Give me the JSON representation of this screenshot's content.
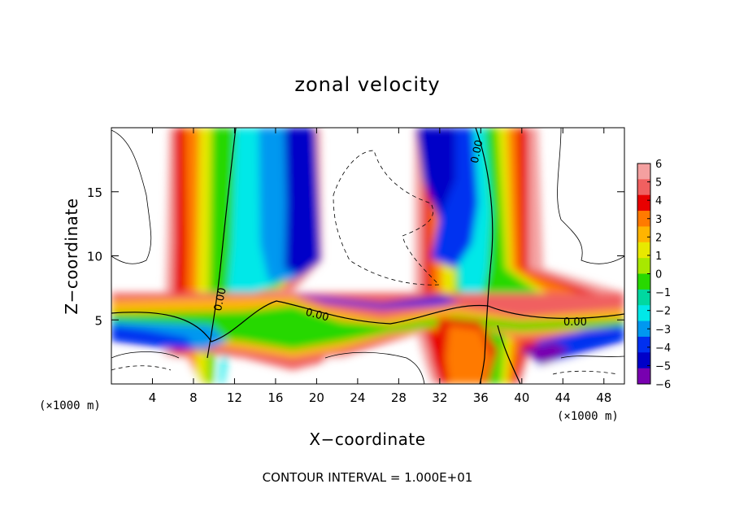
{
  "chart_data": {
    "type": "heatmap",
    "title": "zonal velocity",
    "xlabel": "X−coordinate",
    "ylabel": "Z−coordinate",
    "x_scale_note": "(×1000 m)",
    "y_scale_note": "(×1000 m)",
    "xlim": [
      0,
      50
    ],
    "ylim": [
      0,
      20
    ],
    "x_ticks": [
      4,
      8,
      12,
      16,
      20,
      24,
      28,
      32,
      36,
      40,
      44,
      48
    ],
    "y_ticks": [
      5,
      10,
      15
    ],
    "colorbar": {
      "min": -6,
      "max": 6,
      "ticks": [
        6,
        5,
        4,
        3,
        2,
        1,
        0,
        -1,
        -2,
        -3,
        -4,
        -5,
        -6
      ],
      "tick_labels": [
        "6",
        "5",
        "4",
        "3",
        "2",
        "1",
        "0",
        "−1",
        "−2",
        "−3",
        "−4",
        "−5",
        "−6"
      ],
      "colors": [
        "#f4a0a0",
        "#f06060",
        "#e80000",
        "#ff7a00",
        "#ffb400",
        "#e8e800",
        "#a8e800",
        "#28d800",
        "#00d8a0",
        "#00e8e8",
        "#0098f0",
        "#0030f0",
        "#0000c8",
        "#7800b0"
      ]
    },
    "contour_labels": [
      "0.00",
      "0.00",
      "0.00",
      "0.00"
    ],
    "contour_interval_text": "CONTOUR INTERVAL = 1.000E+01"
  }
}
